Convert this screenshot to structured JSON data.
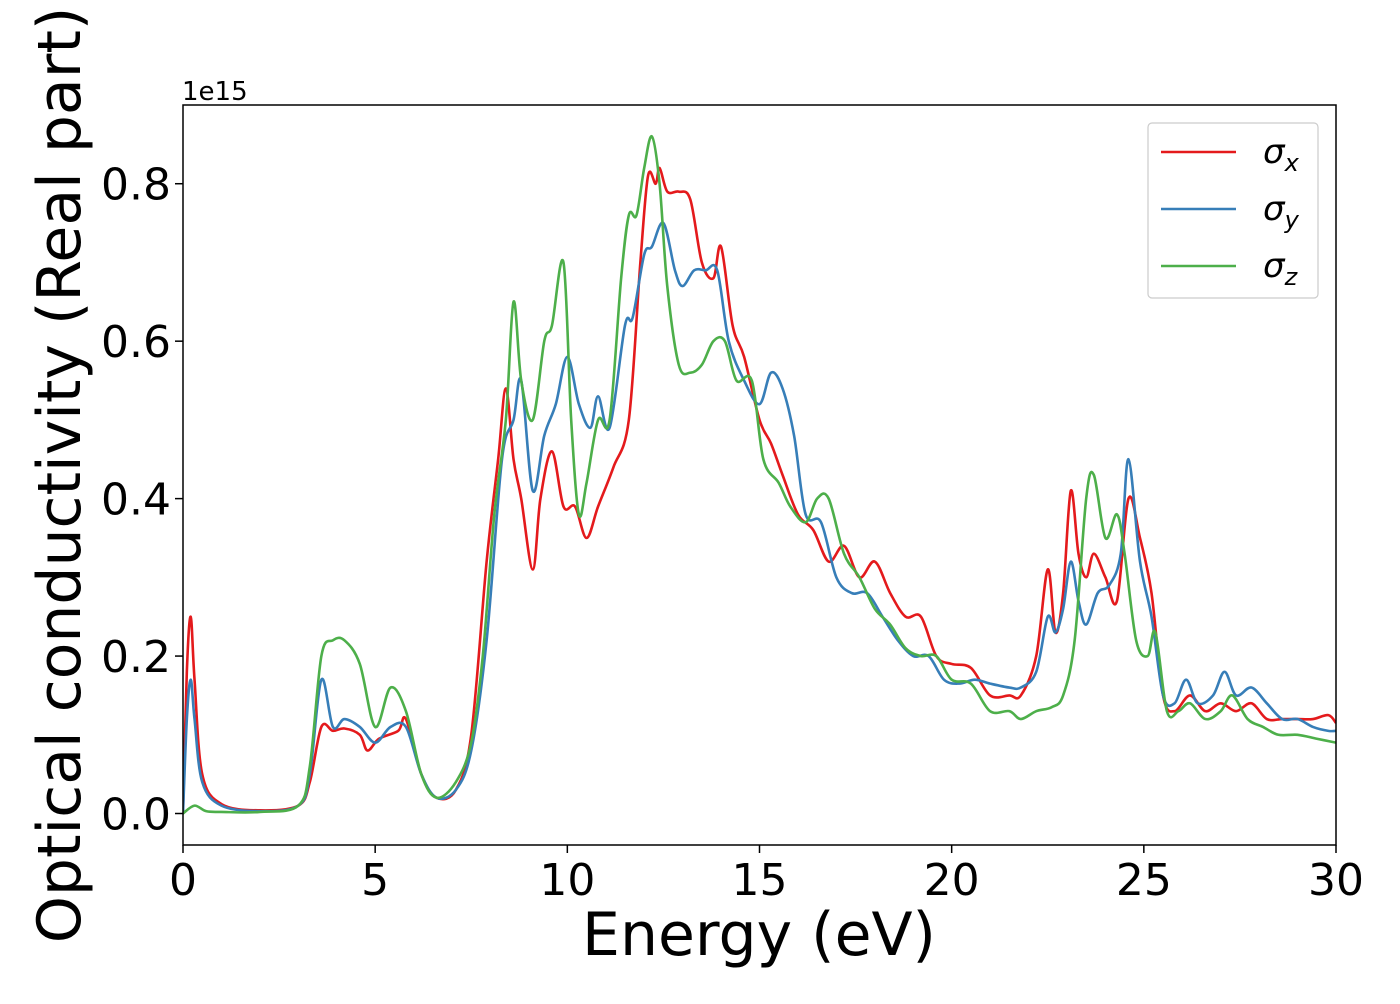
{
  "chart_data": {
    "type": "line",
    "xlabel": "Energy (eV)",
    "ylabel": "Optical conductivity (Real part)",
    "offset_text": "1e15",
    "xlim": [
      0,
      30
    ],
    "ylim": [
      -0.04,
      0.9
    ],
    "xticks": [
      0,
      5,
      10,
      15,
      20,
      25,
      30
    ],
    "yticks": [
      0.0,
      0.2,
      0.4,
      0.6,
      0.8
    ],
    "xtick_labels": [
      "0",
      "5",
      "10",
      "15",
      "20",
      "25",
      "30"
    ],
    "ytick_labels": [
      "0.0",
      "0.2",
      "0.4",
      "0.6",
      "0.8"
    ],
    "legend_position": "top-right",
    "grid": false,
    "series": [
      {
        "name": "σx",
        "symbol": "σ",
        "subscript": "x",
        "color": "#e41a1c",
        "points": [
          [
            0,
            0.0
          ],
          [
            0.1,
            0.18
          ],
          [
            0.2,
            0.25
          ],
          [
            0.3,
            0.17
          ],
          [
            0.5,
            0.05
          ],
          [
            1.0,
            0.012
          ],
          [
            2.0,
            0.004
          ],
          [
            3.0,
            0.01
          ],
          [
            3.3,
            0.04
          ],
          [
            3.6,
            0.11
          ],
          [
            3.9,
            0.105
          ],
          [
            4.2,
            0.108
          ],
          [
            4.6,
            0.1
          ],
          [
            4.8,
            0.08
          ],
          [
            5.1,
            0.095
          ],
          [
            5.6,
            0.105
          ],
          [
            5.8,
            0.12
          ],
          [
            6.2,
            0.05
          ],
          [
            6.6,
            0.02
          ],
          [
            7.1,
            0.03
          ],
          [
            7.5,
            0.1
          ],
          [
            7.9,
            0.32
          ],
          [
            8.2,
            0.45
          ],
          [
            8.4,
            0.54
          ],
          [
            8.6,
            0.45
          ],
          [
            8.8,
            0.4
          ],
          [
            9.1,
            0.31
          ],
          [
            9.3,
            0.4
          ],
          [
            9.6,
            0.46
          ],
          [
            9.9,
            0.39
          ],
          [
            10.2,
            0.39
          ],
          [
            10.5,
            0.35
          ],
          [
            10.8,
            0.39
          ],
          [
            11.2,
            0.44
          ],
          [
            11.6,
            0.5
          ],
          [
            11.9,
            0.7
          ],
          [
            12.1,
            0.81
          ],
          [
            12.3,
            0.8
          ],
          [
            12.4,
            0.82
          ],
          [
            12.6,
            0.79
          ],
          [
            12.9,
            0.79
          ],
          [
            13.2,
            0.78
          ],
          [
            13.5,
            0.7
          ],
          [
            13.8,
            0.68
          ],
          [
            14.0,
            0.72
          ],
          [
            14.3,
            0.62
          ],
          [
            14.6,
            0.58
          ],
          [
            15.0,
            0.5
          ],
          [
            15.3,
            0.47
          ],
          [
            15.6,
            0.43
          ],
          [
            16.0,
            0.38
          ],
          [
            16.4,
            0.36
          ],
          [
            16.8,
            0.32
          ],
          [
            17.2,
            0.34
          ],
          [
            17.6,
            0.3
          ],
          [
            18.0,
            0.32
          ],
          [
            18.4,
            0.28
          ],
          [
            18.8,
            0.25
          ],
          [
            19.2,
            0.25
          ],
          [
            19.6,
            0.2
          ],
          [
            20.0,
            0.19
          ],
          [
            20.5,
            0.185
          ],
          [
            21.0,
            0.15
          ],
          [
            21.5,
            0.15
          ],
          [
            21.8,
            0.15
          ],
          [
            22.2,
            0.2
          ],
          [
            22.5,
            0.31
          ],
          [
            22.7,
            0.23
          ],
          [
            22.9,
            0.28
          ],
          [
            23.1,
            0.41
          ],
          [
            23.3,
            0.33
          ],
          [
            23.5,
            0.3
          ],
          [
            23.7,
            0.33
          ],
          [
            24.0,
            0.3
          ],
          [
            24.3,
            0.27
          ],
          [
            24.6,
            0.4
          ],
          [
            24.9,
            0.35
          ],
          [
            25.2,
            0.28
          ],
          [
            25.5,
            0.15
          ],
          [
            25.8,
            0.13
          ],
          [
            26.2,
            0.15
          ],
          [
            26.6,
            0.13
          ],
          [
            27.0,
            0.14
          ],
          [
            27.4,
            0.13
          ],
          [
            27.8,
            0.14
          ],
          [
            28.2,
            0.12
          ],
          [
            28.6,
            0.12
          ],
          [
            29.0,
            0.12
          ],
          [
            29.4,
            0.12
          ],
          [
            29.8,
            0.125
          ],
          [
            30.0,
            0.115
          ]
        ]
      },
      {
        "name": "σy",
        "symbol": "σ",
        "subscript": "y",
        "color": "#377eb8",
        "points": [
          [
            0,
            0.0
          ],
          [
            0.1,
            0.12
          ],
          [
            0.2,
            0.17
          ],
          [
            0.3,
            0.12
          ],
          [
            0.5,
            0.04
          ],
          [
            1.0,
            0.01
          ],
          [
            2.0,
            0.003
          ],
          [
            3.0,
            0.01
          ],
          [
            3.3,
            0.05
          ],
          [
            3.6,
            0.17
          ],
          [
            3.9,
            0.11
          ],
          [
            4.2,
            0.12
          ],
          [
            4.6,
            0.11
          ],
          [
            5.0,
            0.09
          ],
          [
            5.4,
            0.11
          ],
          [
            5.8,
            0.11
          ],
          [
            6.2,
            0.05
          ],
          [
            6.6,
            0.02
          ],
          [
            7.1,
            0.03
          ],
          [
            7.5,
            0.08
          ],
          [
            7.9,
            0.22
          ],
          [
            8.3,
            0.45
          ],
          [
            8.6,
            0.5
          ],
          [
            8.8,
            0.55
          ],
          [
            9.1,
            0.41
          ],
          [
            9.4,
            0.48
          ],
          [
            9.7,
            0.52
          ],
          [
            10.0,
            0.58
          ],
          [
            10.3,
            0.52
          ],
          [
            10.6,
            0.49
          ],
          [
            10.8,
            0.53
          ],
          [
            11.1,
            0.49
          ],
          [
            11.5,
            0.62
          ],
          [
            11.7,
            0.63
          ],
          [
            12.0,
            0.71
          ],
          [
            12.2,
            0.72
          ],
          [
            12.5,
            0.75
          ],
          [
            12.8,
            0.69
          ],
          [
            13.0,
            0.67
          ],
          [
            13.3,
            0.69
          ],
          [
            13.6,
            0.69
          ],
          [
            13.9,
            0.69
          ],
          [
            14.2,
            0.6
          ],
          [
            14.6,
            0.55
          ],
          [
            15.0,
            0.52
          ],
          [
            15.3,
            0.56
          ],
          [
            15.6,
            0.54
          ],
          [
            15.9,
            0.48
          ],
          [
            16.2,
            0.38
          ],
          [
            16.6,
            0.37
          ],
          [
            17.0,
            0.3
          ],
          [
            17.4,
            0.28
          ],
          [
            17.8,
            0.28
          ],
          [
            18.2,
            0.25
          ],
          [
            18.6,
            0.22
          ],
          [
            19.0,
            0.2
          ],
          [
            19.4,
            0.2
          ],
          [
            19.8,
            0.17
          ],
          [
            20.2,
            0.165
          ],
          [
            20.6,
            0.17
          ],
          [
            21.0,
            0.165
          ],
          [
            21.5,
            0.16
          ],
          [
            21.8,
            0.16
          ],
          [
            22.2,
            0.18
          ],
          [
            22.5,
            0.25
          ],
          [
            22.7,
            0.23
          ],
          [
            22.9,
            0.26
          ],
          [
            23.1,
            0.32
          ],
          [
            23.3,
            0.27
          ],
          [
            23.5,
            0.24
          ],
          [
            23.8,
            0.28
          ],
          [
            24.1,
            0.29
          ],
          [
            24.4,
            0.33
          ],
          [
            24.6,
            0.45
          ],
          [
            24.9,
            0.32
          ],
          [
            25.2,
            0.25
          ],
          [
            25.5,
            0.15
          ],
          [
            25.8,
            0.14
          ],
          [
            26.1,
            0.17
          ],
          [
            26.4,
            0.14
          ],
          [
            26.8,
            0.15
          ],
          [
            27.1,
            0.18
          ],
          [
            27.4,
            0.15
          ],
          [
            27.8,
            0.16
          ],
          [
            28.2,
            0.14
          ],
          [
            28.6,
            0.12
          ],
          [
            29.0,
            0.12
          ],
          [
            29.4,
            0.11
          ],
          [
            29.8,
            0.105
          ],
          [
            30.0,
            0.105
          ]
        ]
      },
      {
        "name": "σz",
        "symbol": "σ",
        "subscript": "z",
        "color": "#4daf4a",
        "points": [
          [
            0,
            0.0
          ],
          [
            0.3,
            0.01
          ],
          [
            0.6,
            0.003
          ],
          [
            1.0,
            0.002
          ],
          [
            2.0,
            0.002
          ],
          [
            3.0,
            0.01
          ],
          [
            3.3,
            0.06
          ],
          [
            3.6,
            0.2
          ],
          [
            3.9,
            0.22
          ],
          [
            4.2,
            0.22
          ],
          [
            4.6,
            0.19
          ],
          [
            5.0,
            0.11
          ],
          [
            5.4,
            0.16
          ],
          [
            5.8,
            0.13
          ],
          [
            6.2,
            0.05
          ],
          [
            6.6,
            0.02
          ],
          [
            7.1,
            0.04
          ],
          [
            7.5,
            0.09
          ],
          [
            7.8,
            0.2
          ],
          [
            8.1,
            0.38
          ],
          [
            8.4,
            0.5
          ],
          [
            8.6,
            0.65
          ],
          [
            8.8,
            0.55
          ],
          [
            9.1,
            0.5
          ],
          [
            9.4,
            0.6
          ],
          [
            9.6,
            0.62
          ],
          [
            9.9,
            0.7
          ],
          [
            10.1,
            0.5
          ],
          [
            10.3,
            0.38
          ],
          [
            10.5,
            0.42
          ],
          [
            10.8,
            0.5
          ],
          [
            11.1,
            0.5
          ],
          [
            11.4,
            0.68
          ],
          [
            11.6,
            0.76
          ],
          [
            11.8,
            0.76
          ],
          [
            12.0,
            0.82
          ],
          [
            12.2,
            0.86
          ],
          [
            12.4,
            0.8
          ],
          [
            12.6,
            0.67
          ],
          [
            12.9,
            0.57
          ],
          [
            13.2,
            0.56
          ],
          [
            13.5,
            0.57
          ],
          [
            13.8,
            0.6
          ],
          [
            14.1,
            0.6
          ],
          [
            14.4,
            0.55
          ],
          [
            14.8,
            0.55
          ],
          [
            15.1,
            0.45
          ],
          [
            15.5,
            0.42
          ],
          [
            15.8,
            0.39
          ],
          [
            16.2,
            0.37
          ],
          [
            16.5,
            0.4
          ],
          [
            16.8,
            0.4
          ],
          [
            17.2,
            0.33
          ],
          [
            17.6,
            0.3
          ],
          [
            18.0,
            0.26
          ],
          [
            18.4,
            0.24
          ],
          [
            18.8,
            0.21
          ],
          [
            19.2,
            0.2
          ],
          [
            19.6,
            0.2
          ],
          [
            20.0,
            0.17
          ],
          [
            20.5,
            0.165
          ],
          [
            21.0,
            0.13
          ],
          [
            21.5,
            0.13
          ],
          [
            21.8,
            0.12
          ],
          [
            22.2,
            0.13
          ],
          [
            22.6,
            0.135
          ],
          [
            22.9,
            0.15
          ],
          [
            23.2,
            0.22
          ],
          [
            23.5,
            0.4
          ],
          [
            23.7,
            0.43
          ],
          [
            24.0,
            0.35
          ],
          [
            24.3,
            0.38
          ],
          [
            24.5,
            0.33
          ],
          [
            24.8,
            0.22
          ],
          [
            25.1,
            0.2
          ],
          [
            25.3,
            0.23
          ],
          [
            25.6,
            0.13
          ],
          [
            25.9,
            0.13
          ],
          [
            26.2,
            0.14
          ],
          [
            26.6,
            0.12
          ],
          [
            27.0,
            0.13
          ],
          [
            27.3,
            0.15
          ],
          [
            27.7,
            0.12
          ],
          [
            28.1,
            0.11
          ],
          [
            28.5,
            0.1
          ],
          [
            29.0,
            0.1
          ],
          [
            29.5,
            0.095
          ],
          [
            30.0,
            0.09
          ]
        ]
      }
    ]
  }
}
